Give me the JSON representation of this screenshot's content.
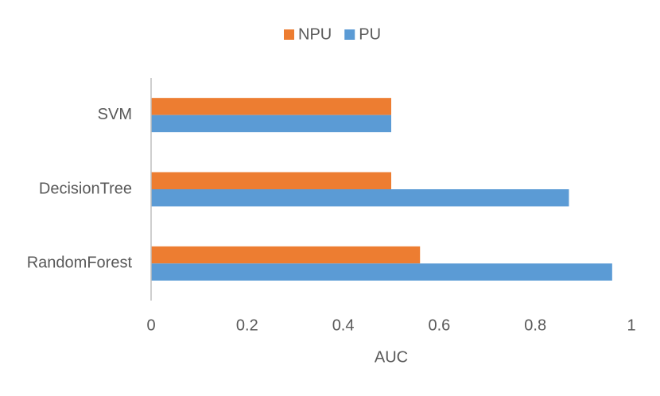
{
  "chart_data": {
    "type": "hbar",
    "categories": [
      "SVM",
      "DecisionTree",
      "RandomForest"
    ],
    "series": [
      {
        "name": "NPU",
        "color": "#ed7d31",
        "values": [
          0.5,
          0.5,
          0.56
        ]
      },
      {
        "name": "PU",
        "color": "#5b9bd5",
        "values": [
          0.5,
          0.87,
          0.96
        ]
      }
    ],
    "x_label": "AUC",
    "xlim": [
      0,
      1
    ],
    "xticks": [
      0,
      0.2,
      0.4,
      0.6,
      0.8,
      1
    ],
    "grid": false,
    "legend": "top"
  }
}
